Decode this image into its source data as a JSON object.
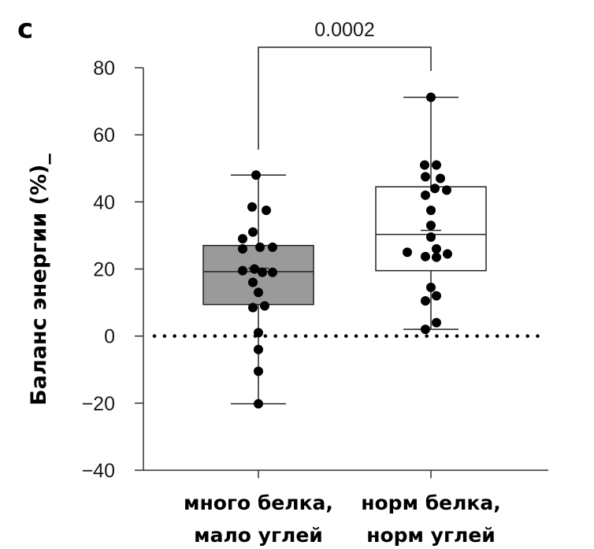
{
  "panel_letter": "c",
  "chart_data": {
    "type": "box",
    "ylabel": "Баланс энергии (%)_",
    "ylim": [
      -40,
      80
    ],
    "yticks": [
      80,
      60,
      40,
      20,
      0,
      -20,
      -40
    ],
    "ytick_labels": [
      "80",
      "60",
      "40",
      "20",
      "0",
      "−20",
      "−40"
    ],
    "reference_line": 0,
    "significance": {
      "label": "0.0002",
      "from": 0,
      "to": 1
    },
    "categories": [
      {
        "line1": "много белка,",
        "line2": "мало углей"
      },
      {
        "line1": "норм белка,",
        "line2": "норм углей"
      }
    ],
    "groups": [
      {
        "fill": "#9a9a9a",
        "min": -20.2,
        "q1": 9.4,
        "median": 19.2,
        "q3": 27,
        "max": 48,
        "mean": 20.2,
        "points": [
          {
            "x": -0.03,
            "y": 48
          },
          {
            "x": -0.08,
            "y": 38.5
          },
          {
            "x": 0.1,
            "y": 37.5
          },
          {
            "x": -0.07,
            "y": 31
          },
          {
            "x": -0.2,
            "y": 29
          },
          {
            "x": 0.02,
            "y": 26.5
          },
          {
            "x": -0.2,
            "y": 26
          },
          {
            "x": 0.18,
            "y": 26.5
          },
          {
            "x": -0.2,
            "y": 19.5
          },
          {
            "x": -0.05,
            "y": 20
          },
          {
            "x": 0.05,
            "y": 19
          },
          {
            "x": 0.18,
            "y": 19
          },
          {
            "x": -0.07,
            "y": 16
          },
          {
            "x": 0.0,
            "y": 13
          },
          {
            "x": -0.07,
            "y": 8.5
          },
          {
            "x": 0.08,
            "y": 9
          },
          {
            "x": 0.0,
            "y": 1
          },
          {
            "x": 0.0,
            "y": -4
          },
          {
            "x": 0.0,
            "y": -10.5
          },
          {
            "x": 0.0,
            "y": -20.2
          }
        ]
      },
      {
        "fill": "#ffffff",
        "min": 2,
        "q1": 19.5,
        "median": 30.3,
        "q3": 44.5,
        "max": 71.2,
        "mean": 31.5,
        "points": [
          {
            "x": 0.0,
            "y": 71.2
          },
          {
            "x": -0.08,
            "y": 51
          },
          {
            "x": 0.07,
            "y": 51
          },
          {
            "x": -0.07,
            "y": 47.5
          },
          {
            "x": 0.12,
            "y": 47
          },
          {
            "x": -0.07,
            "y": 42
          },
          {
            "x": 0.05,
            "y": 44
          },
          {
            "x": 0.2,
            "y": 43.5
          },
          {
            "x": 0.0,
            "y": 37.5
          },
          {
            "x": 0.0,
            "y": 33
          },
          {
            "x": 0.0,
            "y": 29.5
          },
          {
            "x": -0.3,
            "y": 25
          },
          {
            "x": -0.07,
            "y": 23.7
          },
          {
            "x": 0.07,
            "y": 26
          },
          {
            "x": 0.07,
            "y": 23.5
          },
          {
            "x": 0.21,
            "y": 24.5
          },
          {
            "x": 0.0,
            "y": 14.5
          },
          {
            "x": -0.07,
            "y": 10.5
          },
          {
            "x": 0.07,
            "y": 12
          },
          {
            "x": -0.07,
            "y": 2
          },
          {
            "x": 0.07,
            "y": 4
          }
        ]
      }
    ]
  }
}
